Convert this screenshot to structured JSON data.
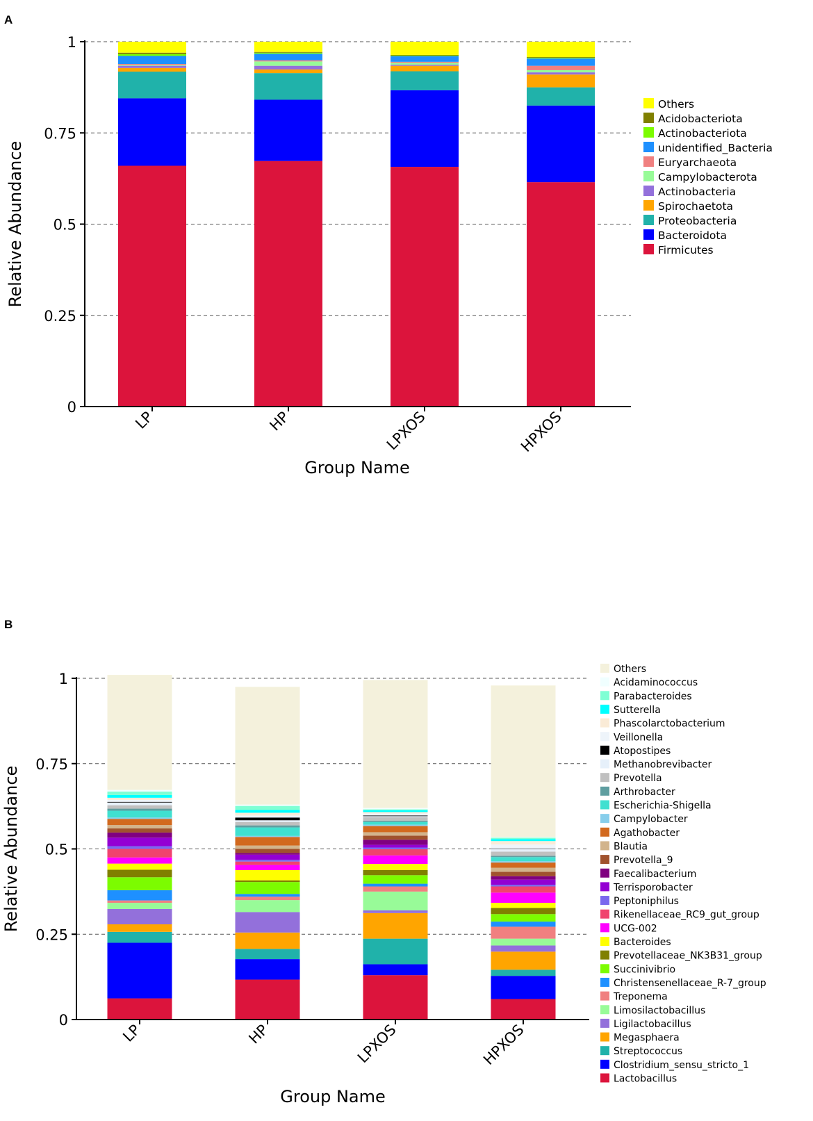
{
  "chart_data": [
    {
      "panel": "A",
      "type": "bar",
      "stacked": true,
      "xlabel": "Group Name",
      "ylabel": "Relative Abundance",
      "ylim": [
        0,
        1
      ],
      "yticks": [
        "0",
        "0.25",
        "0.5",
        "0.75",
        "1"
      ],
      "grid": true,
      "legend_position": "right",
      "categories": [
        "LP",
        "HP",
        "LPXOS",
        "HPXOS"
      ],
      "series": [
        {
          "name": "Firmicutes",
          "color": "#DC143C",
          "values": [
            0.66,
            0.673,
            0.657,
            0.615
          ]
        },
        {
          "name": "Bacteroidota",
          "color": "#0000FF",
          "values": [
            0.185,
            0.168,
            0.21,
            0.21
          ]
        },
        {
          "name": "Proteobacteria",
          "color": "#20B2AA",
          "values": [
            0.073,
            0.073,
            0.052,
            0.05
          ]
        },
        {
          "name": "Spirochaetota",
          "color": "#FFA500",
          "values": [
            0.01,
            0.01,
            0.015,
            0.035
          ]
        },
        {
          "name": "Actinobacteria",
          "color": "#9370DB",
          "values": [
            0.006,
            0.01,
            0.003,
            0.006
          ]
        },
        {
          "name": "Campylobacterota",
          "color": "#98FB98",
          "values": [
            0.002,
            0.012,
            0.005,
            0.006
          ]
        },
        {
          "name": "Euryarchaeota",
          "color": "#F08080",
          "values": [
            0.003,
            0.003,
            0.003,
            0.012
          ]
        },
        {
          "name": "unidentified_Bacteria",
          "color": "#1E90FF",
          "values": [
            0.022,
            0.018,
            0.015,
            0.02
          ]
        },
        {
          "name": "Actinobacteriota",
          "color": "#7CFC00",
          "values": [
            0.005,
            0.003,
            0.002,
            0.002
          ]
        },
        {
          "name": "Acidobacteriota",
          "color": "#808000",
          "values": [
            0.004,
            0.002,
            0.002,
            0.002
          ]
        },
        {
          "name": "Others",
          "color": "#FFFF00",
          "values": [
            0.03,
            0.028,
            0.036,
            0.042
          ]
        }
      ]
    },
    {
      "panel": "B",
      "type": "bar",
      "stacked": true,
      "xlabel": "Group Name",
      "ylabel": "Relative Abundance",
      "ylim": [
        0,
        1
      ],
      "yticks": [
        "0",
        "0.25",
        "0.5",
        "0.75",
        "1"
      ],
      "grid": true,
      "legend_position": "right",
      "categories": [
        "LP",
        "HP",
        "LPXOS",
        "HPXOS"
      ],
      "series": [
        {
          "name": "Lactobacillus",
          "color": "#DC143C",
          "values": [
            0.062,
            0.117,
            0.13,
            0.06
          ]
        },
        {
          "name": "Clostridium_sensu_stricto_1",
          "color": "#0000FF",
          "values": [
            0.163,
            0.06,
            0.032,
            0.068
          ]
        },
        {
          "name": "Streptococcus",
          "color": "#20B2AA",
          "values": [
            0.032,
            0.03,
            0.075,
            0.018
          ]
        },
        {
          "name": "Megasphaera",
          "color": "#FFA500",
          "values": [
            0.022,
            0.048,
            0.075,
            0.053
          ]
        },
        {
          "name": "Ligilactobacillus",
          "color": "#9370DB",
          "values": [
            0.045,
            0.06,
            0.008,
            0.018
          ]
        },
        {
          "name": "Limosilactobacillus",
          "color": "#98FB98",
          "values": [
            0.018,
            0.035,
            0.055,
            0.02
          ]
        },
        {
          "name": "Treponema",
          "color": "#F08080",
          "values": [
            0.007,
            0.01,
            0.015,
            0.035
          ]
        },
        {
          "name": "Christensenellaceae_R-7_group",
          "color": "#1E90FF",
          "values": [
            0.03,
            0.008,
            0.008,
            0.015
          ]
        },
        {
          "name": "Succinivibrio",
          "color": "#7CFC00",
          "values": [
            0.038,
            0.035,
            0.025,
            0.022
          ]
        },
        {
          "name": "Prevotellaceae_NK3B31_group",
          "color": "#808000",
          "values": [
            0.022,
            0.005,
            0.015,
            0.018
          ]
        },
        {
          "name": "Bacteroides",
          "color": "#FFFF00",
          "values": [
            0.018,
            0.03,
            0.018,
            0.015
          ]
        },
        {
          "name": "UCG-002",
          "color": "#FF00FF",
          "values": [
            0.018,
            0.015,
            0.025,
            0.03
          ]
        },
        {
          "name": "Rikenellaceae_RC9_gut_group",
          "color": "#F0436E",
          "values": [
            0.025,
            0.01,
            0.018,
            0.018
          ]
        },
        {
          "name": "Peptoniphilus",
          "color": "#7B68EE",
          "values": [
            0.008,
            0.005,
            0.005,
            0.005
          ]
        },
        {
          "name": "Terrisporobacter",
          "color": "#9400D3",
          "values": [
            0.025,
            0.015,
            0.008,
            0.015
          ]
        },
        {
          "name": "Faecalibacterium",
          "color": "#800080",
          "values": [
            0.015,
            0.005,
            0.015,
            0.01
          ]
        },
        {
          "name": "Prevotella_9",
          "color": "#A0522D",
          "values": [
            0.012,
            0.012,
            0.012,
            0.013
          ]
        },
        {
          "name": "Blautia",
          "color": "#D2B48C",
          "values": [
            0.01,
            0.01,
            0.01,
            0.012
          ]
        },
        {
          "name": "Agathobacter",
          "color": "#D2691E",
          "values": [
            0.018,
            0.025,
            0.018,
            0.015
          ]
        },
        {
          "name": "Campylobacter",
          "color": "#87CEEB",
          "values": [
            0.004,
            0.003,
            0.004,
            0.004
          ]
        },
        {
          "name": "Escherichia-Shigella",
          "color": "#40E0D0",
          "values": [
            0.02,
            0.025,
            0.008,
            0.012
          ]
        },
        {
          "name": "Arthrobacter",
          "color": "#5F9EA0",
          "values": [
            0.006,
            0.006,
            0.004,
            0.004
          ]
        },
        {
          "name": "Prevotella",
          "color": "#C0C0C0",
          "values": [
            0.01,
            0.01,
            0.01,
            0.012
          ]
        },
        {
          "name": "Methanobrevibacter",
          "color": "#E6F0FA",
          "values": [
            0.008,
            0.005,
            0.003,
            0.008
          ]
        },
        {
          "name": "Atopostipes",
          "color": "#000000",
          "values": [
            0.002,
            0.008,
            0.002,
            0.001
          ]
        },
        {
          "name": "Veillonella",
          "color": "#EEF4FA",
          "values": [
            0.006,
            0.006,
            0.006,
            0.012
          ]
        },
        {
          "name": "Phascolarctobacterium",
          "color": "#FAEBD7",
          "values": [
            0.006,
            0.008,
            0.004,
            0.01
          ]
        },
        {
          "name": "Sutterella",
          "color": "#00FFFF",
          "values": [
            0.008,
            0.008,
            0.005,
            0.006
          ]
        },
        {
          "name": "Parabacteroides",
          "color": "#7FFFD4",
          "values": [
            0.01,
            0.012,
            0.003,
            0.004
          ]
        },
        {
          "name": "Acidaminococcus",
          "color": "#F0FFFF",
          "values": [
            0.005,
            0.004,
            0.004,
            0.002
          ]
        },
        {
          "name": "Others",
          "color": "#F4F1DC",
          "values": [
            0.337,
            0.345,
            0.375,
            0.444
          ]
        }
      ]
    }
  ]
}
